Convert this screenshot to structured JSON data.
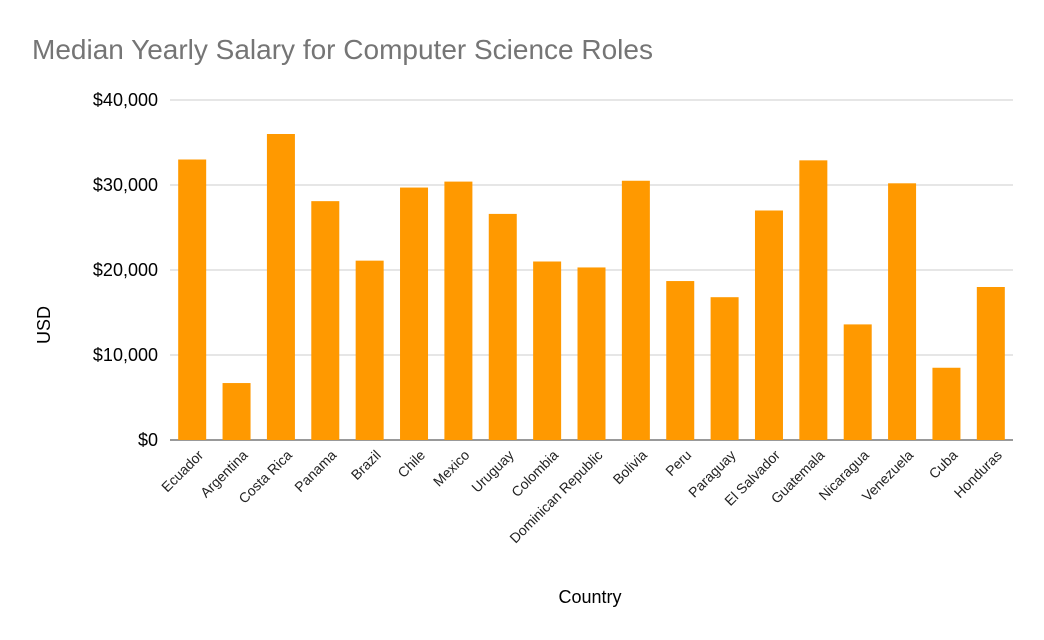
{
  "chart_data": {
    "type": "bar",
    "title": "Median Yearly Salary for Computer Science Roles",
    "xlabel": "Country",
    "ylabel": "USD",
    "ylim": [
      0,
      40000
    ],
    "yticks": [
      0,
      10000,
      20000,
      30000,
      40000
    ],
    "ytick_labels": [
      "$0",
      "$10,000",
      "$20,000",
      "$30,000",
      "$40,000"
    ],
    "grid": true,
    "legend": "none",
    "bar_color": "#ff9900",
    "categories": [
      "Ecuador",
      "Argentina",
      "Costa Rica",
      "Panama",
      "Brazil",
      "Chile",
      "Mexico",
      "Uruguay",
      "Colombia",
      "Dominican Republic",
      "Bolivia",
      "Peru",
      "Paraguay",
      "El Salvador",
      "Guatemala",
      "Nicaragua",
      "Venezuela",
      "Cuba",
      "Honduras"
    ],
    "values": [
      33000,
      6700,
      36000,
      28100,
      21100,
      29700,
      30400,
      26600,
      21000,
      20300,
      30500,
      18700,
      16800,
      27000,
      32900,
      13600,
      30200,
      8500,
      18000
    ]
  }
}
